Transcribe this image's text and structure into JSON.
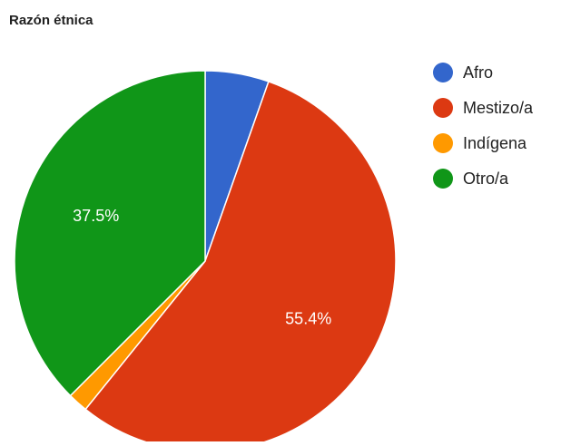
{
  "chart_data": {
    "type": "pie",
    "title": "Razón étnica",
    "slices": [
      {
        "label": "Afro",
        "value": 5.4,
        "color": "#3366cc",
        "show_label": false
      },
      {
        "label": "Mestizo/a",
        "value": 55.4,
        "color": "#dc3912",
        "show_label": true
      },
      {
        "label": "Indígena",
        "value": 1.7,
        "color": "#ff9900",
        "show_label": false
      },
      {
        "label": "Otro/a",
        "value": 37.5,
        "color": "#109618",
        "show_label": true
      }
    ],
    "legend_position": "right"
  }
}
